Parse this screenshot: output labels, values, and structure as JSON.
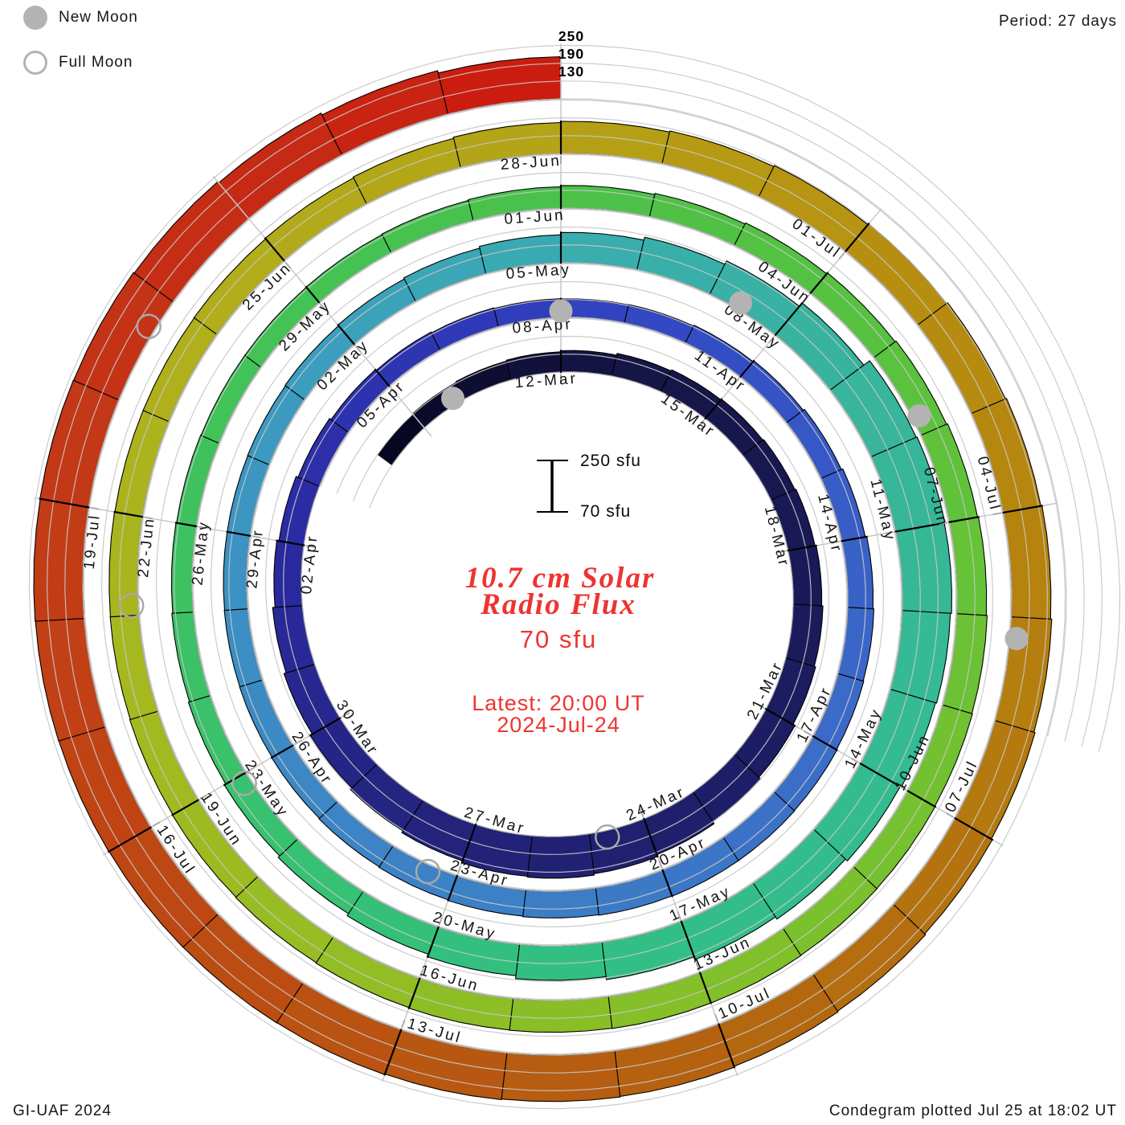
{
  "header": {
    "period_note": "Period: 27 days"
  },
  "legend": {
    "new_moon": "New Moon",
    "full_moon": "Full Moon"
  },
  "radial_scale_labels": [
    "250",
    "190",
    "130"
  ],
  "scale_bar": {
    "top_label": "250 sfu",
    "bottom_label": "70 sfu"
  },
  "center": {
    "title_line1": "10.7 cm Solar",
    "title_line2": "Radio Flux",
    "flux_label": "70 sfu",
    "latest_line1": "Latest: 20:00 UT",
    "latest_line2": "2024-Jul-24",
    "accent_color": "#ee3431"
  },
  "footer": {
    "left": "GI-UAF 2024",
    "right": "Condegram plotted Jul 25 at 18:02 UT"
  },
  "chart_data": {
    "type": "spiral_bar_condegram",
    "title": "10.7 cm Solar Radio Flux",
    "units": "sfu",
    "period_days": 27,
    "angle_per_day_deg": 13.3333,
    "baseline_sfu": 70,
    "gridline_levels_sfu": [
      70,
      130,
      190,
      250
    ],
    "start_date": "2024-03-08",
    "end_date": "2024-07-24",
    "reference_date_at_top": "2024-03-12",
    "series_note": "daily 10.7 cm solar radio flux, values estimated from plot",
    "flux": [
      128,
      132,
      135,
      138,
      142,
      148,
      152,
      155,
      158,
      162,
      166,
      170,
      175,
      182,
      190,
      198,
      205,
      210,
      207,
      200,
      193,
      186,
      178,
      170,
      162,
      155,
      148,
      142,
      138,
      135,
      133,
      132,
      133,
      136,
      140,
      145,
      150,
      155,
      158,
      160,
      162,
      163,
      163,
      162,
      160,
      158,
      156,
      154,
      152,
      150,
      149,
      148,
      148,
      149,
      151,
      154,
      158,
      164,
      172,
      182,
      195,
      210,
      235,
      238,
      236,
      232,
      228,
      224,
      215,
      206,
      196,
      186,
      176,
      167,
      159,
      152,
      146,
      142,
      139,
      137,
      136,
      136,
      137,
      139,
      142,
      146,
      150,
      154,
      158,
      162,
      166,
      169,
      172,
      174,
      176,
      177,
      178,
      178,
      177,
      176,
      174,
      172,
      170,
      168,
      166,
      165,
      164,
      164,
      165,
      167,
      170,
      174,
      178,
      182,
      186,
      190,
      194,
      198,
      202,
      206,
      210,
      214,
      218,
      221,
      224,
      226,
      228,
      230,
      231,
      232,
      233,
      234,
      235,
      236,
      235,
      232,
      227,
      220,
      212
    ],
    "tick_label_dates": [
      "12-Mar",
      "15-Mar",
      "18-Mar",
      "21-Mar",
      "24-Mar",
      "27-Mar",
      "30-Mar",
      "02-Apr",
      "05-Apr",
      "08-Apr",
      "11-Apr",
      "14-Apr",
      "17-Apr",
      "20-Apr",
      "23-Apr",
      "26-Apr",
      "29-Apr",
      "02-May",
      "05-May",
      "08-May",
      "11-May",
      "14-May",
      "17-May",
      "20-May",
      "23-May",
      "26-May",
      "29-May",
      "01-Jun",
      "04-Jun",
      "07-Jun",
      "10-Jun",
      "13-Jun",
      "16-Jun",
      "19-Jun",
      "22-Jun",
      "25-Jun",
      "28-Jun",
      "01-Jul",
      "04-Jul",
      "07-Jul",
      "10-Jul",
      "13-Jul",
      "16-Jul",
      "19-Jul"
    ],
    "moons": [
      {
        "date": "10-Mar",
        "phase": "new",
        "t": -2.2
      },
      {
        "date": "25-Mar",
        "phase": "full",
        "t": 12.7
      },
      {
        "date": "08-Apr",
        "phase": "new",
        "t": 27.0
      },
      {
        "date": "23-Apr",
        "phase": "full",
        "t": 42.4
      },
      {
        "date": "08-May",
        "phase": "new",
        "t": 56.4
      },
      {
        "date": "23-May",
        "phase": "full",
        "t": 71.9
      },
      {
        "date": "06-Jun",
        "phase": "new",
        "t": 85.8
      },
      {
        "date": "21-Jun",
        "phase": "full",
        "t": 101.1
      },
      {
        "date": "05-Jul",
        "phase": "new",
        "t": 115.2
      },
      {
        "date": "21-Jul",
        "phase": "full",
        "t": 130.7
      }
    ],
    "moon_colors": {
      "fill": "#b3b3b3",
      "outline": "#a9a9a9"
    },
    "grid_color": "#c7c7c7",
    "color_stops": [
      [
        -4,
        "#05051c"
      ],
      [
        0,
        "#131340"
      ],
      [
        8,
        "#1b1b5e"
      ],
      [
        16,
        "#23237e"
      ],
      [
        21,
        "#2a2aa0"
      ],
      [
        25,
        "#2e36b6"
      ],
      [
        28,
        "#3146c2"
      ],
      [
        34,
        "#3a64c8"
      ],
      [
        40,
        "#3c7cc6"
      ],
      [
        45,
        "#3c88c4"
      ],
      [
        50,
        "#3c9cc0"
      ],
      [
        54,
        "#3aacb0"
      ],
      [
        58,
        "#38b49c"
      ],
      [
        63,
        "#33bc92"
      ],
      [
        68,
        "#32c080"
      ],
      [
        73,
        "#3bc168"
      ],
      [
        77,
        "#42c356"
      ],
      [
        81,
        "#4ac24a"
      ],
      [
        85,
        "#58c23e"
      ],
      [
        90,
        "#74c130"
      ],
      [
        95,
        "#8cbe26"
      ],
      [
        100,
        "#a4b91f"
      ],
      [
        104,
        "#b0af1c"
      ],
      [
        108,
        "#b4a216"
      ],
      [
        111,
        "#b79110"
      ],
      [
        114,
        "#b5850e"
      ],
      [
        117,
        "#b4760f"
      ],
      [
        120,
        "#b36510"
      ],
      [
        123,
        "#b95411"
      ],
      [
        126,
        "#bf4513"
      ],
      [
        129,
        "#c23a16"
      ],
      [
        132,
        "#c52c15"
      ],
      [
        135,
        "#cc1a0e"
      ]
    ]
  }
}
